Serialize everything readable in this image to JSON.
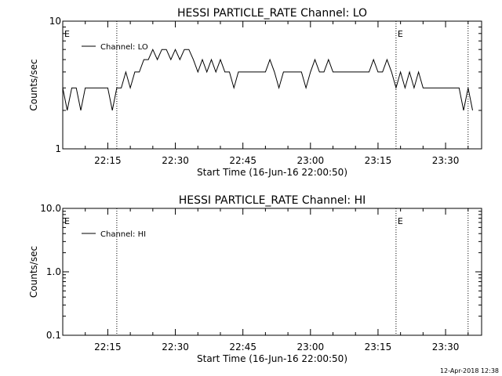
{
  "chart_data": [
    {
      "type": "line",
      "title": "HESSI PARTICLE_RATE Channel: LO",
      "xlabel": "Start Time (16-Jun-16 22:00:50)",
      "ylabel": "Counts/sec",
      "yscale": "log",
      "ylim": [
        1,
        10
      ],
      "xlim": [
        "22:05",
        "23:38"
      ],
      "xticks": [
        "22:15",
        "22:30",
        "22:45",
        "23:00",
        "23:15",
        "23:30"
      ],
      "yticks": [
        "1",
        "10"
      ],
      "grid": false,
      "legend": "top-left",
      "event_lines": [
        "22:17",
        "23:19",
        "23:35"
      ],
      "event_labels": [
        {
          "time": "22:05",
          "text": "E"
        },
        {
          "time": "23:19",
          "text": "E"
        }
      ],
      "series": [
        {
          "name": "Channel: LO",
          "x": [
            "22:05",
            "22:06",
            "22:07",
            "22:08",
            "22:09",
            "22:10",
            "22:11",
            "22:12",
            "22:13",
            "22:14",
            "22:15",
            "22:16",
            "22:17",
            "22:18",
            "22:19",
            "22:20",
            "22:21",
            "22:22",
            "22:23",
            "22:24",
            "22:25",
            "22:26",
            "22:27",
            "22:28",
            "22:29",
            "22:30",
            "22:31",
            "22:32",
            "22:33",
            "22:34",
            "22:35",
            "22:36",
            "22:37",
            "22:38",
            "22:39",
            "22:40",
            "22:41",
            "22:42",
            "22:43",
            "22:44",
            "22:45",
            "22:46",
            "22:47",
            "22:48",
            "22:49",
            "22:50",
            "22:51",
            "22:52",
            "22:53",
            "22:54",
            "22:55",
            "22:56",
            "22:57",
            "22:58",
            "22:59",
            "23:00",
            "23:01",
            "23:02",
            "23:03",
            "23:04",
            "23:05",
            "23:06",
            "23:07",
            "23:08",
            "23:09",
            "23:10",
            "23:11",
            "23:12",
            "23:13",
            "23:14",
            "23:15",
            "23:16",
            "23:17",
            "23:18",
            "23:19",
            "23:20",
            "23:21",
            "23:22",
            "23:23",
            "23:24",
            "23:25",
            "23:26",
            "23:27",
            "23:28",
            "23:29",
            "23:30",
            "23:31",
            "23:32",
            "23:33",
            "23:34",
            "23:35",
            "23:36"
          ],
          "values": [
            3,
            2,
            3,
            3,
            2,
            3,
            3,
            3,
            3,
            3,
            3,
            2,
            3,
            3,
            4,
            3,
            4,
            4,
            5,
            5,
            6,
            5,
            6,
            6,
            5,
            6,
            5,
            6,
            6,
            5,
            4,
            5,
            4,
            5,
            4,
            5,
            4,
            4,
            3,
            4,
            4,
            4,
            4,
            4,
            4,
            4,
            5,
            4,
            3,
            4,
            4,
            4,
            4,
            4,
            3,
            4,
            5,
            4,
            4,
            5,
            4,
            4,
            4,
            4,
            4,
            4,
            4,
            4,
            4,
            5,
            4,
            4,
            5,
            4,
            3,
            4,
            3,
            4,
            3,
            4,
            3,
            3,
            3,
            3,
            3,
            3,
            3,
            3,
            3,
            2,
            3,
            2
          ]
        }
      ]
    },
    {
      "type": "line",
      "title": "HESSI PARTICLE_RATE Channel: HI",
      "xlabel": "Start Time (16-Jun-16 22:00:50)",
      "ylabel": "Counts/sec",
      "yscale": "log",
      "ylim": [
        0.1,
        10
      ],
      "xlim": [
        "22:05",
        "23:38"
      ],
      "xticks": [
        "22:15",
        "22:30",
        "22:45",
        "23:00",
        "23:15",
        "23:30"
      ],
      "yticks": [
        "0.1",
        "1.0",
        "10.0"
      ],
      "grid": false,
      "legend": "top-left",
      "event_lines": [
        "22:17",
        "23:19",
        "23:35"
      ],
      "event_labels": [
        {
          "time": "22:05",
          "text": "E"
        },
        {
          "time": "23:19",
          "text": "E"
        }
      ],
      "series": [
        {
          "name": "Channel: HI",
          "x": [],
          "values": []
        }
      ]
    }
  ],
  "footer": "12-Apr-2018 12:38"
}
